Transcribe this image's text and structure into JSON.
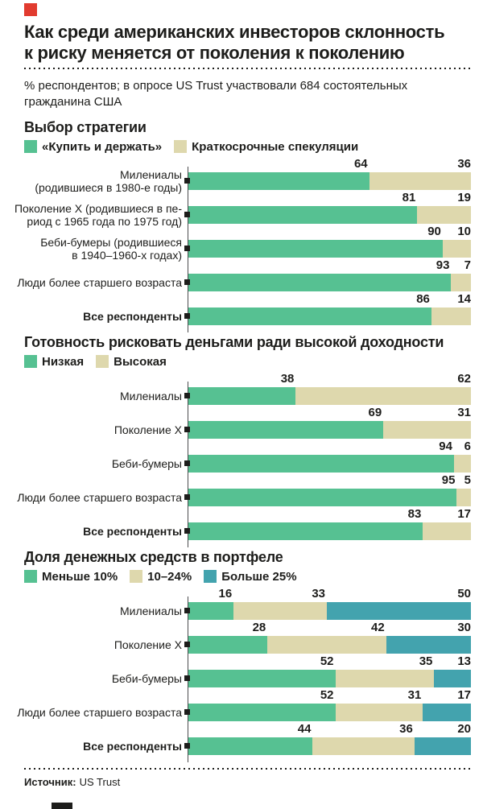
{
  "page": {
    "title": "Как среди американских инвесторов склонность\nк риску меняется от поколения к поколению",
    "subtitle": "% респондентов; в опросе US Trust участвовали 684 состоятельных\nгражданина США"
  },
  "footer": {
    "source_label": "Источник:",
    "source_value": "US Trust"
  },
  "decor": {
    "top_left_square_color": "#e13b2f",
    "bottom_bar_color": "#1d1d1b",
    "text_color": "#1d1d1b",
    "axis_color": "#4c4c4e",
    "marker_color": "#1d1d1b"
  },
  "colors": {
    "green": "#56c192",
    "beige": "#ded8ad",
    "teal": "#43a3ae"
  },
  "chart_data": [
    {
      "type": "bar",
      "orientation": "horizontal",
      "stacked": true,
      "unit": "%",
      "xlim": [
        0,
        100
      ],
      "grid": false,
      "legend_position": "top",
      "title": "Выбор стратегии",
      "legend": [
        {
          "label": "«Купить и держать»",
          "color": "#56c192"
        },
        {
          "label": "Краткосрочные спекуляции",
          "color": "#ded8ad"
        }
      ],
      "categories": [
        {
          "lines": [
            "Милениалы",
            "(родившиеся в 1980-е годы)"
          ],
          "bold": false
        },
        {
          "lines": [
            "Поколение X (родившиеся в пе-",
            "риод с 1965 года по 1975 год)"
          ],
          "bold": false
        },
        {
          "lines": [
            "Беби-бумеры (родившиеся",
            "в 1940–1960-х годах)"
          ],
          "bold": false
        },
        {
          "lines": [
            "Люди более старшего возраста"
          ],
          "bold": false
        },
        {
          "lines": [
            "Все респонденты"
          ],
          "bold": true
        }
      ],
      "series": [
        {
          "name": "«Купить и держать»",
          "values": [
            64,
            81,
            90,
            93,
            86
          ]
        },
        {
          "name": "Краткосрочные спекуляции",
          "values": [
            36,
            19,
            10,
            7,
            14
          ]
        }
      ]
    },
    {
      "type": "bar",
      "orientation": "horizontal",
      "stacked": true,
      "unit": "%",
      "xlim": [
        0,
        100
      ],
      "grid": false,
      "legend_position": "top",
      "title": "Готовность рисковать деньгами ради высокой доходности",
      "legend": [
        {
          "label": "Низкая",
          "color": "#56c192"
        },
        {
          "label": "Высокая",
          "color": "#ded8ad"
        }
      ],
      "categories": [
        {
          "lines": [
            "Милениалы"
          ],
          "bold": false
        },
        {
          "lines": [
            "Поколение X"
          ],
          "bold": false
        },
        {
          "lines": [
            "Беби-бумеры"
          ],
          "bold": false
        },
        {
          "lines": [
            "Люди более старшего возраста"
          ],
          "bold": false
        },
        {
          "lines": [
            "Все респонденты"
          ],
          "bold": true
        }
      ],
      "series": [
        {
          "name": "Низкая",
          "values": [
            38,
            69,
            94,
            95,
            83
          ]
        },
        {
          "name": "Высокая",
          "values": [
            62,
            31,
            6,
            5,
            17
          ]
        }
      ]
    },
    {
      "type": "bar",
      "orientation": "horizontal",
      "stacked": true,
      "unit": "%",
      "xlim": [
        0,
        100
      ],
      "grid": false,
      "legend_position": "top",
      "title": "Доля денежных средств в портфеле",
      "legend": [
        {
          "label": "Меньше 10%",
          "color": "#56c192"
        },
        {
          "label": "10–24%",
          "color": "#ded8ad"
        },
        {
          "label": "Больше 25%",
          "color": "#43a3ae"
        }
      ],
      "categories": [
        {
          "lines": [
            "Милениалы"
          ],
          "bold": false
        },
        {
          "lines": [
            "Поколение X"
          ],
          "bold": false
        },
        {
          "lines": [
            "Беби-бумеры"
          ],
          "bold": false
        },
        {
          "lines": [
            "Люди более старшего возраста"
          ],
          "bold": false
        },
        {
          "lines": [
            "Все респонденты"
          ],
          "bold": true
        }
      ],
      "series": [
        {
          "name": "Меньше 10%",
          "values": [
            16,
            28,
            52,
            52,
            44
          ]
        },
        {
          "name": "10–24%",
          "values": [
            33,
            42,
            35,
            31,
            36
          ]
        },
        {
          "name": "Больше 25%",
          "values": [
            50,
            30,
            13,
            17,
            20
          ]
        }
      ]
    }
  ]
}
